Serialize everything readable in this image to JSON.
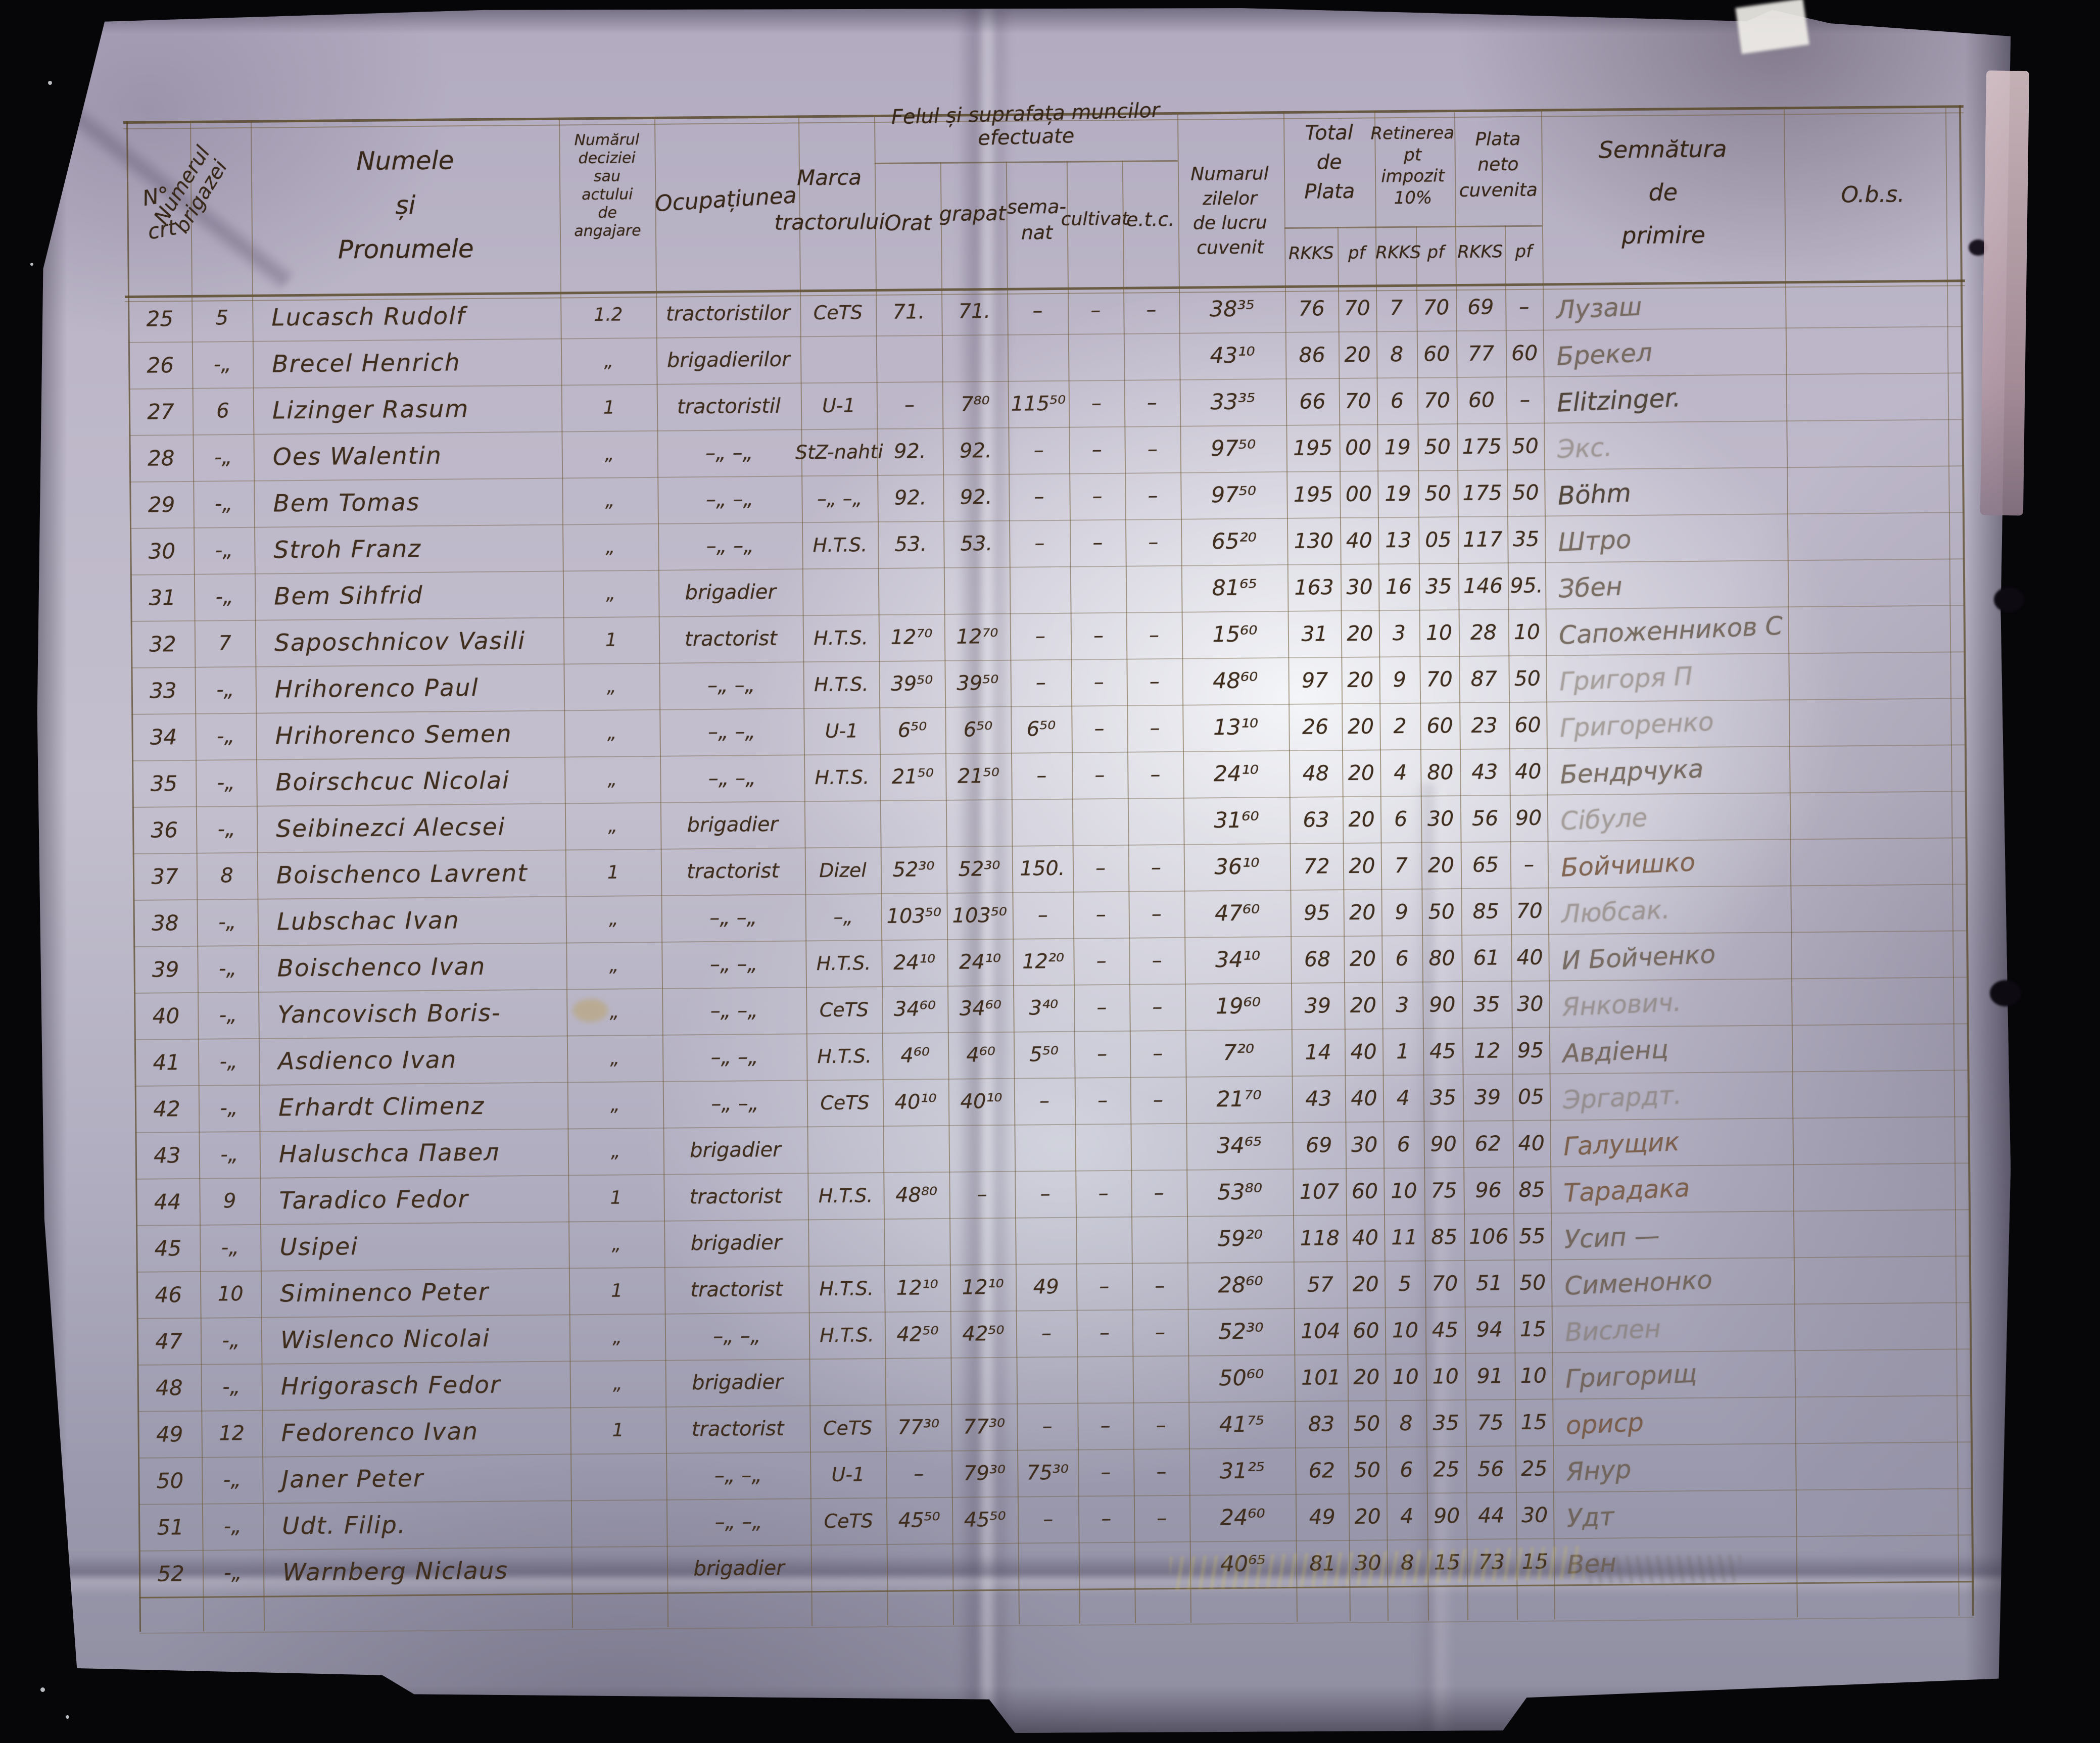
{
  "page": {
    "background_color": "#060508",
    "paper_color": "#bcb6c8",
    "ink_color": "#3f2e1e",
    "pencil_color": "#6a5d50",
    "rule_color": "#6e5a33"
  },
  "document": {
    "header": {
      "nr": "N°\ncrt",
      "brigade": "Numerul\nbrigazei",
      "name": "Numele\nși\nPronumele",
      "decision": "Numărul\ndeciziei\nsau\nactului\nde\nangajare",
      "occupation": "Ocupațiunea",
      "tractor": "Marca\ntractorului",
      "work_group": "Felul și suprafața muncilor\nefectuate",
      "work": {
        "orat": "Orat",
        "grapat": "grapat",
        "semanat": "sema-\nnat",
        "cultivat": "cultivat",
        "etc": "e.t.c."
      },
      "days": "Numarul\nzilelor\nde lucru\ncuvenit",
      "total": "Total\nde\nPlata",
      "tax": "Retinerea\npt\nimpozit\n10%",
      "net": "Plata\nneto\ncuvenita",
      "currency": "RKKS",
      "subunit": "pf",
      "signature": "Semnătura\nde\nprimire",
      "obs": "O.b.s."
    },
    "rows": [
      {
        "nr": "25",
        "brig": "5",
        "name": "Lucasch Rudolf",
        "dec": "1.2",
        "ocup": "tractoristilor",
        "marca": "CeTS",
        "orat": "71.",
        "grapat": "71.",
        "semanat": "–",
        "cultivat": "–",
        "etc": "–",
        "zile": "38³⁵",
        "t_rkks": "76",
        "t_pf": "70",
        "r_rkks": "7",
        "r_pf": "70",
        "n_rkks": "69",
        "n_pf": "–",
        "sig": "Лузаш",
        "sig_style": "pencil"
      },
      {
        "nr": "26",
        "brig": "-„",
        "name": "Brecel Henrich",
        "dec": "„",
        "ocup": "brigadierilor",
        "zile": "43¹⁰",
        "t_rkks": "86",
        "t_pf": "20",
        "r_rkks": "8",
        "r_pf": "60",
        "n_rkks": "77",
        "n_pf": "60",
        "sig": "Брекел",
        "sig_style": "pencil"
      },
      {
        "nr": "27",
        "brig": "6",
        "name": "Lizinger Rasum",
        "dec": "1",
        "ocup": "tractoristil",
        "marca": "U-1",
        "orat": "–",
        "grapat": "7⁸⁰",
        "semanat": "115⁵⁰",
        "cultivat": "–",
        "etc": "–",
        "zile": "33³⁵",
        "t_rkks": "66",
        "t_pf": "70",
        "r_rkks": "6",
        "r_pf": "70",
        "n_rkks": "60",
        "n_pf": "–",
        "sig": "Elitzinger.",
        "sig_style": "pencil-dark"
      },
      {
        "nr": "28",
        "brig": "-„",
        "name": "Oes Walentin",
        "dec": "„",
        "ocup": "–„ –„",
        "marca": "StZ-nahti",
        "orat": "92.",
        "grapat": "92.",
        "semanat": "–",
        "cultivat": "–",
        "etc": "–",
        "zile": "97⁵⁰",
        "t_rkks": "195",
        "t_pf": "00",
        "r_rkks": "19",
        "r_pf": "50",
        "n_rkks": "175",
        "n_pf": "50",
        "sig": "Экс.",
        "sig_style": "pencil-faint"
      },
      {
        "nr": "29",
        "brig": "-„",
        "name": "Bem Tomas",
        "dec": "„",
        "ocup": "–„ –„",
        "marca": "–„ –„",
        "orat": "92.",
        "grapat": "92.",
        "semanat": "–",
        "cultivat": "–",
        "etc": "–",
        "zile": "97⁵⁰",
        "t_rkks": "195",
        "t_pf": "00",
        "r_rkks": "19",
        "r_pf": "50",
        "n_rkks": "175",
        "n_pf": "50",
        "sig": "Böhm",
        "sig_style": "pencil-dark"
      },
      {
        "nr": "30",
        "brig": "-„",
        "name": "Stroh Franz",
        "dec": "„",
        "ocup": "–„ –„",
        "marca": "H.T.S.",
        "orat": "53.",
        "grapat": "53.",
        "semanat": "–",
        "cultivat": "–",
        "etc": "–",
        "zile": "65²⁰",
        "t_rkks": "130",
        "t_pf": "40",
        "r_rkks": "13",
        "r_pf": "05",
        "n_rkks": "117",
        "n_pf": "35",
        "sig": "Штро",
        "sig_style": "pencil"
      },
      {
        "nr": "31",
        "brig": "-„",
        "name": "Bem Sihfrid",
        "dec": "„",
        "ocup": "brigadier",
        "zile": "81⁶⁵",
        "t_rkks": "163",
        "t_pf": "30",
        "r_rkks": "16",
        "r_pf": "35",
        "n_rkks": "146",
        "n_pf": "95.",
        "sig": "Збен",
        "sig_style": "pencil"
      },
      {
        "nr": "32",
        "brig": "7",
        "name": "Saposchnicov Vasili",
        "dec": "1",
        "ocup": "tractorist",
        "marca": "H.T.S.",
        "orat": "12⁷⁰",
        "grapat": "12⁷⁰",
        "semanat": "–",
        "cultivat": "–",
        "etc": "–",
        "zile": "15⁶⁰",
        "t_rkks": "31",
        "t_pf": "20",
        "r_rkks": "3",
        "r_pf": "10",
        "n_rkks": "28",
        "n_pf": "10",
        "sig": "Сапоженников С",
        "sig_style": "pencil"
      },
      {
        "nr": "33",
        "brig": "-„",
        "name": "Hrihorenco Paul",
        "dec": "„",
        "ocup": "–„ –„",
        "marca": "H.T.S.",
        "orat": "39⁵⁰",
        "grapat": "39⁵⁰",
        "semanat": "–",
        "cultivat": "–",
        "etc": "–",
        "zile": "48⁶⁰",
        "t_rkks": "97",
        "t_pf": "20",
        "r_rkks": "9",
        "r_pf": "70",
        "n_rkks": "87",
        "n_pf": "50",
        "sig": "Григоря П",
        "sig_style": "pencil-faint"
      },
      {
        "nr": "34",
        "brig": "-„",
        "name": "Hrihorenco Semen",
        "dec": "„",
        "ocup": "–„ –„",
        "marca": "U-1",
        "orat": "6⁵⁰",
        "grapat": "6⁵⁰",
        "semanat": "6⁵⁰",
        "cultivat": "–",
        "etc": "–",
        "zile": "13¹⁰",
        "t_rkks": "26",
        "t_pf": "20",
        "r_rkks": "2",
        "r_pf": "60",
        "n_rkks": "23",
        "n_pf": "60",
        "sig": "Григоренко",
        "sig_style": "pencil-faint"
      },
      {
        "nr": "35",
        "brig": "-„",
        "name": "Boirschcuc Nicolai",
        "dec": "„",
        "ocup": "–„ –„",
        "marca": "H.T.S.",
        "orat": "21⁵⁰",
        "grapat": "21⁵⁰",
        "semanat": "–",
        "cultivat": "–",
        "etc": "–",
        "zile": "24¹⁰",
        "t_rkks": "48",
        "t_pf": "20",
        "r_rkks": "4",
        "r_pf": "80",
        "n_rkks": "43",
        "n_pf": "40",
        "sig": "Бендрчука",
        "sig_style": "pencil"
      },
      {
        "nr": "36",
        "brig": "-„",
        "name": "Seibinezci Alecsei",
        "dec": "„",
        "ocup": "brigadier",
        "zile": "31⁶⁰",
        "t_rkks": "63",
        "t_pf": "20",
        "r_rkks": "6",
        "r_pf": "30",
        "n_rkks": "56",
        "n_pf": "90",
        "sig": "Сібуле",
        "sig_style": "pencil-faint"
      },
      {
        "nr": "37",
        "brig": "8",
        "name": "Boischenco Lavrent",
        "dec": "1",
        "ocup": "tractorist",
        "marca": "Dizel",
        "orat": "52³⁰",
        "grapat": "52³⁰",
        "semanat": "150.",
        "cultivat": "–",
        "etc": "–",
        "zile": "36¹⁰",
        "t_rkks": "72",
        "t_pf": "20",
        "r_rkks": "7",
        "r_pf": "20",
        "n_rkks": "65",
        "n_pf": "–",
        "sig": "Бойчишко",
        "sig_style": "pencil-warm"
      },
      {
        "nr": "38",
        "brig": "-„",
        "name": "Lubschac Ivan",
        "dec": "„",
        "ocup": "–„ –„",
        "marca": "–„",
        "orat": "103⁵⁰",
        "grapat": "103⁵⁰",
        "semanat": "–",
        "cultivat": "–",
        "etc": "–",
        "zile": "47⁶⁰",
        "t_rkks": "95",
        "t_pf": "20",
        "r_rkks": "9",
        "r_pf": "50",
        "n_rkks": "85",
        "n_pf": "70",
        "sig": "Любсак.",
        "sig_style": "pencil-faint"
      },
      {
        "nr": "39",
        "brig": "-„",
        "name": "Boischenco Ivan",
        "dec": "„",
        "ocup": "–„ –„",
        "marca": "H.T.S.",
        "orat": "24¹⁰",
        "grapat": "24¹⁰",
        "semanat": "12²⁰",
        "cultivat": "–",
        "etc": "–",
        "zile": "34¹⁰",
        "t_rkks": "68",
        "t_pf": "20",
        "r_rkks": "6",
        "r_pf": "80",
        "n_rkks": "61",
        "n_pf": "40",
        "sig": "И Бойченко",
        "sig_style": "pencil"
      },
      {
        "nr": "40",
        "brig": "-„",
        "name": "Yancovisch Boris-",
        "dec": "„",
        "ocup": "–„ –„",
        "marca": "CeTS",
        "orat": "34⁶⁰",
        "grapat": "34⁶⁰",
        "semanat": "3⁴⁰",
        "cultivat": "–",
        "etc": "–",
        "zile": "19⁶⁰",
        "t_rkks": "39",
        "t_pf": "20",
        "r_rkks": "3",
        "r_pf": "90",
        "n_rkks": "35",
        "n_pf": "30",
        "sig": "Янкович.",
        "sig_style": "pencil-faint"
      },
      {
        "nr": "41",
        "brig": "-„",
        "name": "Asdienco Ivan",
        "dec": "„",
        "ocup": "–„ –„",
        "marca": "H.T.S.",
        "orat": "4⁶⁰",
        "grapat": "4⁶⁰",
        "semanat": "5⁵⁰",
        "cultivat": "–",
        "etc": "–",
        "zile": "7²⁰",
        "t_rkks": "14",
        "t_pf": "40",
        "r_rkks": "1",
        "r_pf": "45",
        "n_rkks": "12",
        "n_pf": "95",
        "sig": "Авдіенц",
        "sig_style": "pencil"
      },
      {
        "nr": "42",
        "brig": "-„",
        "name": "Erhardt Climenz",
        "dec": "„",
        "ocup": "–„ –„",
        "marca": "CeTS",
        "orat": "40¹⁰",
        "grapat": "40¹⁰",
        "semanat": "–",
        "cultivat": "–",
        "etc": "–",
        "zile": "21⁷⁰",
        "t_rkks": "43",
        "t_pf": "40",
        "r_rkks": "4",
        "r_pf": "35",
        "n_rkks": "39",
        "n_pf": "05",
        "sig": "Эргардт.",
        "sig_style": "pencil-faint"
      },
      {
        "nr": "43",
        "brig": "-„",
        "name": "Haluschca Павел",
        "dec": "„",
        "ocup": "brigadier",
        "zile": "34⁶⁵",
        "t_rkks": "69",
        "t_pf": "30",
        "r_rkks": "6",
        "r_pf": "90",
        "n_rkks": "62",
        "n_pf": "40",
        "sig": "Галущик",
        "sig_style": "pencil-warm"
      },
      {
        "nr": "44",
        "brig": "9",
        "name": "Taradico Fedor",
        "dec": "1",
        "ocup": "tractorist",
        "marca": "H.T.S.",
        "orat": "48⁸⁰",
        "grapat": "–",
        "semanat": "–",
        "cultivat": "–",
        "etc": "–",
        "zile": "53⁸⁰",
        "t_rkks": "107",
        "t_pf": "60",
        "r_rkks": "10",
        "r_pf": "75",
        "n_rkks": "96",
        "n_pf": "85",
        "sig": "Тарадака",
        "sig_style": "pencil-warm"
      },
      {
        "nr": "45",
        "brig": "-„",
        "name": "Usipei",
        "dec": "„",
        "ocup": "brigadier",
        "zile": "59²⁰",
        "t_rkks": "118",
        "t_pf": "40",
        "r_rkks": "11",
        "r_pf": "85",
        "n_rkks": "106",
        "n_pf": "55",
        "sig": "Усип —",
        "sig_style": "pencil"
      },
      {
        "nr": "46",
        "brig": "10",
        "name": "Siminenco Peter",
        "dec": "1",
        "ocup": "tractorist",
        "marca": "H.T.S.",
        "orat": "12¹⁰",
        "grapat": "12¹⁰",
        "semanat": "49",
        "cultivat": "–",
        "etc": "–",
        "zile": "28⁶⁰",
        "t_rkks": "57",
        "t_pf": "20",
        "r_rkks": "5",
        "r_pf": "70",
        "n_rkks": "51",
        "n_pf": "50",
        "sig": "Сименонко",
        "sig_style": "pencil"
      },
      {
        "nr": "47",
        "brig": "-„",
        "name": "Wislenco Nicolai",
        "dec": "„",
        "ocup": "–„ –„",
        "marca": "H.T.S.",
        "orat": "42⁵⁰",
        "grapat": "42⁵⁰",
        "semanat": "–",
        "cultivat": "–",
        "etc": "–",
        "zile": "52³⁰",
        "t_rkks": "104",
        "t_pf": "60",
        "r_rkks": "10",
        "r_pf": "45",
        "n_rkks": "94",
        "n_pf": "15",
        "sig": "Вислен",
        "sig_style": "pencil-faint"
      },
      {
        "nr": "48",
        "brig": "-„",
        "name": "Hrigorasch Fedor",
        "dec": "„",
        "ocup": "brigadier",
        "zile": "50⁶⁰",
        "t_rkks": "101",
        "t_pf": "20",
        "r_rkks": "10",
        "r_pf": "10",
        "n_rkks": "91",
        "n_pf": "10",
        "sig": "Григорищ",
        "sig_style": "pencil"
      },
      {
        "nr": "49",
        "brig": "12",
        "name": "Fedorenco Ivan",
        "dec": "1",
        "ocup": "tractorist",
        "marca": "CeTS",
        "orat": "77³⁰",
        "grapat": "77³⁰",
        "semanat": "–",
        "cultivat": "–",
        "etc": "–",
        "zile": "41⁷⁵",
        "t_rkks": "83",
        "t_pf": "50",
        "r_rkks": "8",
        "r_pf": "35",
        "n_rkks": "75",
        "n_pf": "15",
        "sig": "ориср",
        "sig_style": "pencil-warm"
      },
      {
        "nr": "50",
        "brig": "-„",
        "name": "Janer Peter",
        "ocup": "–„ –„",
        "marca": "U-1",
        "orat": "–",
        "grapat": "79³⁰",
        "semanat": "75³⁰",
        "cultivat": "–",
        "etc": "–",
        "zile": "31²⁵",
        "t_rkks": "62",
        "t_pf": "50",
        "r_rkks": "6",
        "r_pf": "25",
        "n_rkks": "56",
        "n_pf": "25",
        "sig": "Янур",
        "sig_style": "pencil"
      },
      {
        "nr": "51",
        "brig": "-„",
        "name": "Udt. Filip.",
        "ocup": "–„ –„",
        "marca": "CeTS",
        "orat": "45⁵⁰",
        "grapat": "45⁵⁰",
        "semanat": "–",
        "cultivat": "–",
        "etc": "–",
        "zile": "24⁶⁰",
        "t_rkks": "49",
        "t_pf": "20",
        "r_rkks": "4",
        "r_pf": "90",
        "n_rkks": "44",
        "n_pf": "30",
        "sig": "Удт",
        "sig_style": "pencil"
      },
      {
        "nr": "52",
        "brig": "-„",
        "name": "Warnberg Niclaus",
        "ocup": "brigadier",
        "zile": "40⁶⁵",
        "t_rkks": "81",
        "t_pf": "30",
        "r_rkks": "8",
        "r_pf": "15",
        "n_rkks": "73",
        "n_pf": "15",
        "sig": "Вен",
        "sig_style": "pencil"
      }
    ]
  }
}
